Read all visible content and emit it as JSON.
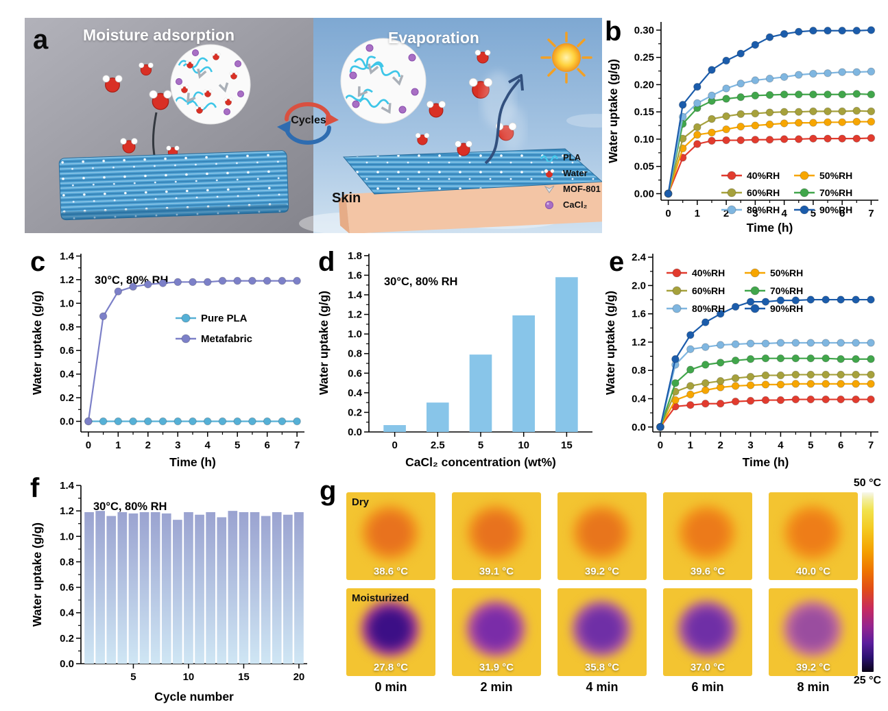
{
  "panel_a": {
    "label": "a",
    "left_title": "Moisture adsorption",
    "right_title": "Evaporation",
    "cycles_label": "Cycles",
    "skin_label": "Skin",
    "legend": [
      {
        "name": "PLA"
      },
      {
        "name": "Water"
      },
      {
        "name": "MOF-801"
      },
      {
        "name": "CaCl₂"
      }
    ]
  },
  "chart_data": [
    {
      "panel_label": "b",
      "type": "line",
      "xlabel": "Time (h)",
      "ylabel": "Water uptake (g/g)",
      "x": [
        0,
        0.5,
        1,
        1.5,
        2,
        2.5,
        3,
        3.5,
        4,
        4.5,
        5,
        5.5,
        6,
        6.5,
        7
      ],
      "series": [
        {
          "name": "40%RH",
          "color": "#e23b2e",
          "values": [
            0,
            0.066,
            0.091,
            0.097,
            0.098,
            0.098,
            0.099,
            0.099,
            0.1,
            0.1,
            0.101,
            0.101,
            0.101,
            0.101,
            0.102
          ]
        },
        {
          "name": "50%RH",
          "color": "#f7a600",
          "values": [
            0,
            0.083,
            0.108,
            0.112,
            0.118,
            0.123,
            0.125,
            0.127,
            0.129,
            0.13,
            0.13,
            0.131,
            0.131,
            0.132,
            0.132
          ]
        },
        {
          "name": "60%RH",
          "color": "#a6a13c",
          "values": [
            0,
            0.101,
            0.122,
            0.137,
            0.142,
            0.146,
            0.147,
            0.149,
            0.15,
            0.15,
            0.151,
            0.151,
            0.151,
            0.152,
            0.151
          ]
        },
        {
          "name": "70%RH",
          "color": "#41a64b",
          "values": [
            0,
            0.128,
            0.157,
            0.17,
            0.174,
            0.177,
            0.18,
            0.181,
            0.182,
            0.182,
            0.182,
            0.182,
            0.182,
            0.183,
            0.182
          ]
        },
        {
          "name": "80%RH",
          "color": "#7fb6e0",
          "values": [
            0,
            0.141,
            0.166,
            0.18,
            0.193,
            0.202,
            0.208,
            0.211,
            0.214,
            0.218,
            0.22,
            0.221,
            0.223,
            0.223,
            0.224
          ]
        },
        {
          "name": "90%RH",
          "color": "#1b5cab",
          "values": [
            0,
            0.163,
            0.196,
            0.227,
            0.244,
            0.257,
            0.273,
            0.287,
            0.293,
            0.297,
            0.299,
            0.299,
            0.299,
            0.299,
            0.3
          ]
        }
      ],
      "xlim": [
        -0.25,
        7.25
      ],
      "ylim": [
        -0.012,
        0.315
      ],
      "xticks": [
        0,
        1,
        2,
        3,
        4,
        5,
        6,
        7
      ],
      "yticks": [
        0,
        0.05,
        0.1,
        0.15,
        0.2,
        0.25,
        0.3
      ],
      "xminor": 0.5,
      "yminor": 0.025,
      "ydecimals": 2,
      "legend_position": "bottom-right",
      "grid": false
    },
    {
      "panel_label": "c",
      "type": "line",
      "annotation": "30°C, 80% RH",
      "xlabel": "Time (h)",
      "ylabel": "Water uptake (g/g)",
      "x": [
        0,
        0.5,
        1,
        1.5,
        2,
        2.5,
        3,
        3.5,
        4,
        4.5,
        5,
        5.5,
        6,
        6.5,
        7
      ],
      "series": [
        {
          "name": "Pure PLA",
          "color": "#55b0d6",
          "values": [
            0,
            0,
            0,
            0,
            0,
            0,
            0,
            0,
            0,
            0,
            0,
            0,
            0,
            0,
            0
          ]
        },
        {
          "name": "Metafabric",
          "color": "#7c80c8",
          "values": [
            0,
            0.89,
            1.1,
            1.14,
            1.16,
            1.17,
            1.18,
            1.18,
            1.18,
            1.19,
            1.19,
            1.19,
            1.19,
            1.19,
            1.19
          ]
        }
      ],
      "xlim": [
        -0.25,
        7.25
      ],
      "ylim": [
        -0.09,
        1.42
      ],
      "xticks": [
        0,
        1,
        2,
        3,
        4,
        5,
        6,
        7
      ],
      "yticks": [
        0,
        0.2,
        0.4,
        0.6,
        0.8,
        1.0,
        1.2,
        1.4
      ],
      "xminor": 0.5,
      "yminor": 0.1,
      "ydecimals": 1,
      "legend_position": "middle-right",
      "grid": false
    },
    {
      "panel_label": "d",
      "type": "bar",
      "annotation": "30°C, 80% RH",
      "xlabel": "CaCl₂ concentration (wt%)",
      "ylabel": "Water uptake (g/g)",
      "categories": [
        "0",
        "2.5",
        "5",
        "10",
        "15"
      ],
      "values": [
        0.07,
        0.3,
        0.79,
        1.19,
        1.58
      ],
      "bar_color": "#88c5e9",
      "ylim": [
        0,
        1.82
      ],
      "yticks": [
        0,
        0.2,
        0.4,
        0.6,
        0.8,
        1.0,
        1.2,
        1.4,
        1.6,
        1.8
      ],
      "yminor": 0.1,
      "ydecimals": 1,
      "bar_width": 0.52,
      "grid": false
    },
    {
      "panel_label": "e",
      "type": "line",
      "xlabel": "Time (h)",
      "ylabel": "Water uptake (g/g)",
      "x": [
        0,
        0.5,
        1,
        1.5,
        2,
        2.5,
        3,
        3.5,
        4,
        4.5,
        5,
        5.5,
        6,
        6.5,
        7
      ],
      "series": [
        {
          "name": "40%RH",
          "color": "#e23b2e",
          "values": [
            0,
            0.29,
            0.31,
            0.33,
            0.33,
            0.36,
            0.37,
            0.38,
            0.38,
            0.39,
            0.39,
            0.39,
            0.39,
            0.39,
            0.39
          ]
        },
        {
          "name": "50%RH",
          "color": "#f7a600",
          "values": [
            0,
            0.38,
            0.46,
            0.52,
            0.56,
            0.58,
            0.59,
            0.6,
            0.6,
            0.61,
            0.61,
            0.61,
            0.61,
            0.61,
            0.61
          ]
        },
        {
          "name": "60%RH",
          "color": "#a6a13c",
          "values": [
            0,
            0.5,
            0.58,
            0.62,
            0.65,
            0.69,
            0.71,
            0.73,
            0.73,
            0.74,
            0.74,
            0.74,
            0.74,
            0.74,
            0.74
          ]
        },
        {
          "name": "70%RH",
          "color": "#41a64b",
          "values": [
            0,
            0.62,
            0.81,
            0.88,
            0.91,
            0.94,
            0.96,
            0.97,
            0.97,
            0.97,
            0.97,
            0.97,
            0.96,
            0.96,
            0.96
          ]
        },
        {
          "name": "80%RH",
          "color": "#7fb6e0",
          "values": [
            0,
            0.88,
            1.1,
            1.13,
            1.16,
            1.17,
            1.18,
            1.18,
            1.19,
            1.19,
            1.19,
            1.19,
            1.19,
            1.19,
            1.19
          ]
        },
        {
          "name": "90%RH",
          "color": "#1b5cab",
          "values": [
            0,
            0.96,
            1.3,
            1.48,
            1.6,
            1.7,
            1.77,
            1.77,
            1.79,
            1.79,
            1.8,
            1.8,
            1.8,
            1.8,
            1.8
          ]
        }
      ],
      "xlim": [
        -0.25,
        7.25
      ],
      "ylim": [
        -0.07,
        2.45
      ],
      "xticks": [
        0,
        1,
        2,
        3,
        4,
        5,
        6,
        7
      ],
      "yticks": [
        0,
        0.4,
        0.8,
        1.2,
        1.6,
        2.0,
        2.4
      ],
      "xminor": 0.5,
      "yminor": 0.2,
      "ydecimals": 1,
      "legend_position": "top-left",
      "grid": false
    },
    {
      "panel_label": "f",
      "type": "bar",
      "annotation": "30°C, 80% RH",
      "xlabel": "Cycle number",
      "ylabel": "Water uptake (g/g)",
      "positions": [
        1,
        2,
        3,
        4,
        5,
        6,
        7,
        8,
        9,
        10,
        11,
        12,
        13,
        14,
        15,
        16,
        17,
        18,
        19,
        20
      ],
      "values": [
        1.19,
        1.2,
        1.16,
        1.19,
        1.18,
        1.19,
        1.19,
        1.18,
        1.13,
        1.19,
        1.17,
        1.19,
        1.15,
        1.2,
        1.19,
        1.19,
        1.16,
        1.19,
        1.17,
        1.19
      ],
      "bar_gradient": [
        "#9197ca",
        "#cfe6f4"
      ],
      "xlim": [
        0.25,
        20.75
      ],
      "xticks": [
        5,
        10,
        15,
        20
      ],
      "ylim": [
        0,
        1.4
      ],
      "yticks": [
        0,
        0.2,
        0.4,
        0.6,
        0.8,
        1.0,
        1.2,
        1.4
      ],
      "yminor": 0.1,
      "ydecimals": 1,
      "bar_width": 0.85,
      "grid": false
    }
  ],
  "panel_g": {
    "label": "g",
    "row_labels": [
      "Dry",
      "Moisturized"
    ],
    "times": [
      "0 min",
      "2 min",
      "4 min",
      "6 min",
      "8 min"
    ],
    "temps": [
      [
        "38.6 °C",
        "39.1 °C",
        "39.2 °C",
        "39.6 °C",
        "40.0 °C"
      ],
      [
        "27.8 °C",
        "31.9 °C",
        "35.8 °C",
        "37.0 °C",
        "39.2 °C"
      ]
    ],
    "cell_bg": "#f3c431",
    "blobs": [
      [
        [
          "#e8721e",
          "#f29b1f"
        ],
        [
          "#e8721e",
          "#f29b1f"
        ],
        [
          "#e8751c",
          "#f29b1f"
        ],
        [
          "#ec7a1a",
          "#f39d1d"
        ],
        [
          "#ee7d18",
          "#f39d1d"
        ]
      ],
      [
        [
          "#3c0f86",
          "#b03c97"
        ],
        [
          "#7a2ca8",
          "#bb539e"
        ],
        [
          "#6f2fa6",
          "#b25aa2"
        ],
        [
          "#6f2fa6",
          "#b25aa2"
        ],
        [
          "#9a4d9f",
          "#ca719b"
        ]
      ]
    ],
    "colorbar": {
      "top": "50 °C",
      "bottom": "25 °C"
    }
  }
}
